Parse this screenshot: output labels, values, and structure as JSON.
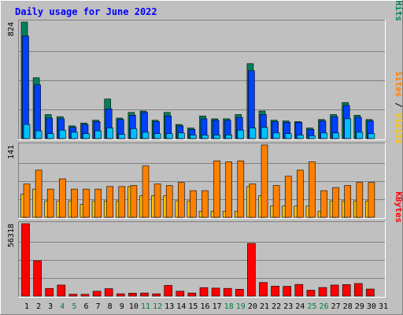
{
  "colors": {
    "background": "#c0c0c0",
    "title_text": "#0000ff",
    "hits": "#00805c",
    "files": "#0040ff",
    "pages": "#00c0ff",
    "visits": "#ff8000",
    "sites": "#ffc000",
    "kbytes": "#ff0000",
    "weekend_label": "#008040",
    "weekday_label": "#000000"
  },
  "chart_data": {
    "title": "Daily usage for June 2022",
    "type": "bar",
    "days": [
      "1",
      "2",
      "3",
      "4",
      "5",
      "6",
      "7",
      "8",
      "9",
      "10",
      "11",
      "12",
      "13",
      "14",
      "15",
      "16",
      "17",
      "18",
      "19",
      "20",
      "21",
      "22",
      "23",
      "24",
      "25",
      "26",
      "27",
      "28",
      "29",
      "30",
      "31"
    ],
    "weekend_days": [
      "4",
      "5",
      "11",
      "12",
      "18",
      "19",
      "25",
      "26"
    ],
    "panels": [
      {
        "name": "top",
        "max_label": "824",
        "ymax": 824,
        "legend": [
          {
            "text": "Hits",
            "color": "#00805c"
          },
          {
            "text": " / ",
            "color": "#000000"
          },
          {
            "text": "Files",
            "color": "#0040ff"
          },
          {
            "text": " / ",
            "color": "#000000"
          },
          {
            "text": "Pages",
            "color": "#00c0ff"
          }
        ],
        "series": [
          {
            "name": "Hits",
            "color": "#00805c",
            "values": [
              824,
              430,
              170,
              155,
              90,
              110,
              130,
              280,
              145,
              185,
              195,
              130,
              185,
              100,
              75,
              160,
              140,
              140,
              170,
              530,
              195,
              130,
              125,
              120,
              75,
              135,
              170,
              255,
              165,
              135,
              0
            ]
          },
          {
            "name": "Files",
            "color": "#0040ff",
            "values": [
              725,
              380,
              145,
              140,
              80,
              100,
              120,
              210,
              135,
              165,
              185,
              120,
              160,
              90,
              65,
              140,
              130,
              130,
              150,
              480,
              170,
              120,
              115,
              115,
              65,
              125,
              155,
              235,
              150,
              125,
              0
            ]
          },
          {
            "name": "Pages",
            "color": "#00c0ff",
            "values": [
              100,
              55,
              35,
              60,
              45,
              35,
              55,
              75,
              30,
              70,
              45,
              35,
              35,
              40,
              25,
              25,
              25,
              25,
              60,
              75,
              80,
              40,
              35,
              25,
              20,
              40,
              40,
              140,
              45,
              35,
              0
            ]
          }
        ]
      },
      {
        "name": "middle",
        "max_label": "141",
        "ymax": 141,
        "legend": [
          {
            "text": "Visits",
            "color": "#ffc000"
          },
          {
            "text": " / ",
            "color": "#000000"
          },
          {
            "text": "Sites",
            "color": "#ff8000"
          }
        ],
        "series": [
          {
            "name": "Visits",
            "color": "#ffc000",
            "values": [
              45,
              55,
              32,
              32,
              32,
              25,
              32,
              32,
              32,
              60,
              42,
              42,
              42,
              32,
              32,
              12,
              12,
              12,
              12,
              60,
              42,
              22,
              22,
              22,
              22,
              12,
              32,
              32,
              32,
              32,
              0
            ]
          },
          {
            "name": "Sites",
            "color": "#ff8000",
            "values": [
              65,
              92,
              55,
              75,
              55,
              55,
              55,
              60,
              60,
              62,
              100,
              65,
              62,
              68,
              52,
              52,
              110,
              108,
              110,
              65,
              141,
              62,
              80,
              92,
              108,
              52,
              58,
              62,
              68,
              68,
              0
            ]
          }
        ]
      },
      {
        "name": "bottom",
        "max_label": "56318",
        "ymax": 56318,
        "legend": [
          {
            "text": "KBytes",
            "color": "#ff0000"
          }
        ],
        "series": [
          {
            "name": "KBytes",
            "color": "#ff0000",
            "values": [
              56318,
              27500,
              6000,
              8600,
              1500,
              1400,
              3800,
              5800,
              1800,
              2300,
              2400,
              1800,
              8300,
              3800,
              2400,
              6600,
              6200,
              6000,
              5300,
              41000,
              10600,
              7700,
              7600,
              9100,
              4600,
              6700,
              8600,
              9000,
              9800,
              5500,
              0
            ]
          }
        ]
      }
    ]
  }
}
